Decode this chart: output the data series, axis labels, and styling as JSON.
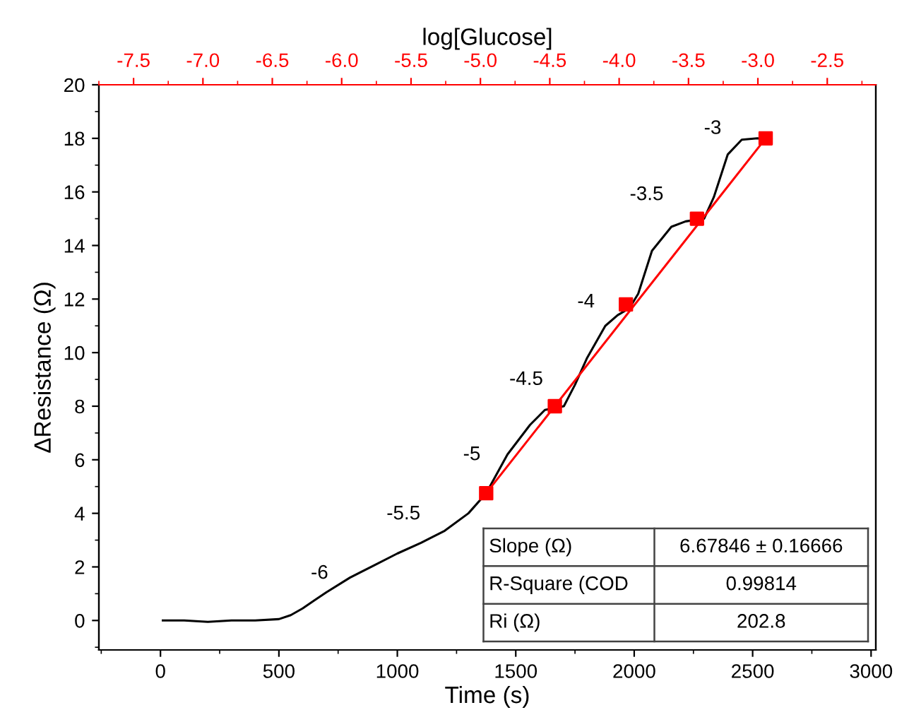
{
  "chart_data": {
    "type": "line",
    "xlabel": "Time (s)",
    "ylabel": "ΔResistance (Ω)",
    "x2label": "log[Glucose]",
    "xlim": [
      -260,
      3020
    ],
    "xticks": [
      0,
      500,
      1000,
      1500,
      2000,
      2500,
      3000
    ],
    "ylim": [
      -1.1,
      20
    ],
    "yticks": [
      0,
      2,
      4,
      6,
      8,
      10,
      12,
      14,
      16,
      18,
      20
    ],
    "x2lim": [
      -7.75,
      -2.15
    ],
    "x2ticks": [
      {
        "value": -7.5,
        "label": "-7.5"
      },
      {
        "value": -7.0,
        "label": "-7.0"
      },
      {
        "value": -6.5,
        "label": "-6.5"
      },
      {
        "value": -6.0,
        "label": "-6.0"
      },
      {
        "value": -5.5,
        "label": "-5.5"
      },
      {
        "value": -5.0,
        "label": "-5.0"
      },
      {
        "value": -4.5,
        "label": "-4.5"
      },
      {
        "value": -4.0,
        "label": "-4.0"
      },
      {
        "value": -3.5,
        "label": "-3.5"
      },
      {
        "value": -3.0,
        "label": "-3.0"
      },
      {
        "value": -2.5,
        "label": "-2.5"
      }
    ],
    "grid": false,
    "series": [
      {
        "color": "#000000",
        "x": [
          10,
          100,
          200,
          300,
          400,
          500,
          550,
          600,
          650,
          700,
          800,
          900,
          1000,
          1100,
          1200,
          1300,
          1375,
          1465,
          1560,
          1623,
          1703,
          1750,
          1801,
          1878,
          1930,
          1980,
          2017,
          2075,
          2157,
          2217,
          2295,
          2336,
          2395,
          2454,
          2520,
          2580
        ],
        "values": [
          0.0,
          0.0,
          -0.05,
          0.0,
          0.0,
          0.05,
          0.2,
          0.45,
          0.75,
          1.05,
          1.6,
          2.05,
          2.5,
          2.9,
          3.35,
          4.0,
          4.75,
          6.2,
          7.3,
          7.86,
          8.0,
          8.8,
          9.8,
          11.0,
          11.4,
          11.66,
          12.2,
          13.8,
          14.7,
          14.9,
          15.0,
          15.8,
          17.4,
          17.95,
          18.0,
          17.95
        ]
      },
      {
        "type": "line",
        "color": "#ff0000",
        "x": [
          1375,
          2555
        ],
        "values": [
          4.75,
          18.0
        ]
      },
      {
        "type": "scatter",
        "color": "#ff0000",
        "marker": "square",
        "x": [
          1375,
          1665,
          1965,
          2265,
          2555
        ],
        "values": [
          4.75,
          8.0,
          11.8,
          15.0,
          18.0
        ]
      }
    ],
    "annotations": [
      "-6",
      "-5.5",
      "-5",
      "-4.5",
      "-4",
      "-3.5",
      "-3",
      "Slope (Ω)",
      "6.67846 ± 0.16666",
      "R-Square (COD",
      "0.99814",
      "Ri (Ω)",
      "202.8"
    ]
  }
}
